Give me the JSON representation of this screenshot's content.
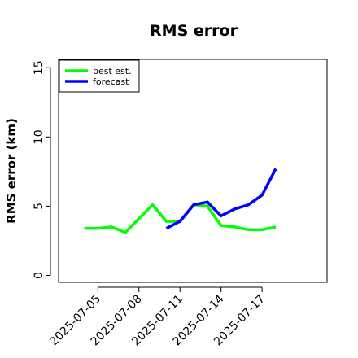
{
  "chart_data": {
    "type": "line",
    "title": "RMS error",
    "y_label": "RMS error (km)",
    "x": [
      "2025-07-04",
      "2025-07-05",
      "2025-07-06",
      "2025-07-07",
      "2025-07-08",
      "2025-07-09",
      "2025-07-10",
      "2025-07-11",
      "2025-07-12",
      "2025-07-13",
      "2025-07-14",
      "2025-07-15",
      "2025-07-16",
      "2025-07-17",
      "2025-07-18"
    ],
    "series": [
      {
        "name": "best est.",
        "color": "#00ff00",
        "values": [
          3.4,
          3.4,
          3.5,
          3.1,
          4.1,
          5.1,
          3.9,
          3.9,
          5.1,
          5.0,
          3.6,
          3.5,
          3.3,
          3.3,
          3.5
        ]
      },
      {
        "name": "forecast",
        "color": "#0000ff",
        "values": [
          null,
          null,
          null,
          null,
          null,
          null,
          3.4,
          3.9,
          5.1,
          5.3,
          4.3,
          4.8,
          5.1,
          5.8,
          7.7
        ]
      }
    ],
    "xlim": [
      "2025-07-02T03:00",
      "2025-07-21T18:00"
    ],
    "xticks": [
      "2025-07-05",
      "2025-07-08",
      "2025-07-11",
      "2025-07-14",
      "2025-07-17"
    ],
    "ylim": [
      -0.5,
      15.6
    ],
    "yticks": [
      0,
      5,
      10,
      15
    ],
    "legend": "top-left"
  }
}
